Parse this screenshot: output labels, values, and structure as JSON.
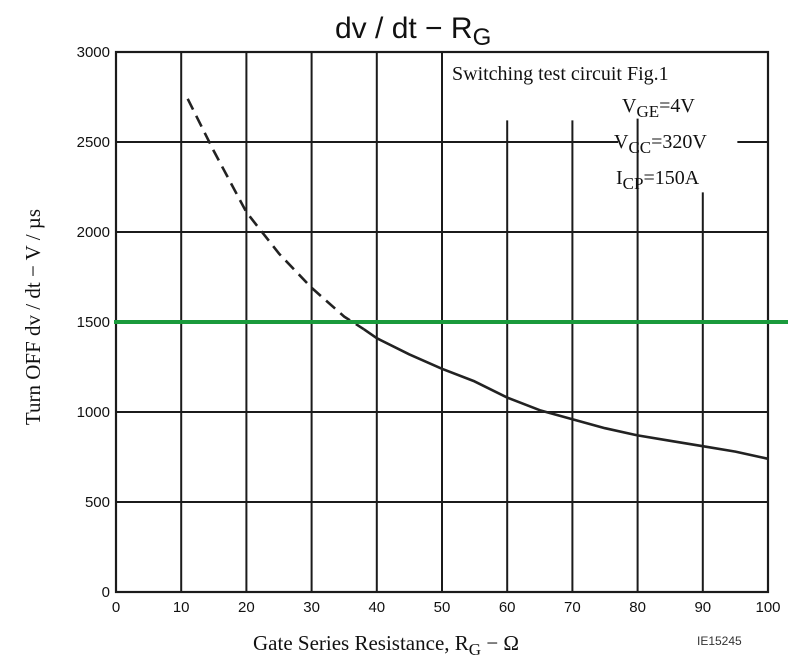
{
  "chart_data": {
    "type": "line",
    "title": "dv / dt  −  R",
    "title_sub": "G",
    "xlabel": "Gate Series Resistance, R",
    "xlabel_sub": "G",
    "xlabel_suffix": "  −  Ω",
    "ylabel": "Turn OFF dv / dt  −  V / µs",
    "xlim": [
      0,
      100
    ],
    "ylim": [
      0,
      3000
    ],
    "xticks": [
      0,
      10,
      20,
      30,
      40,
      50,
      60,
      70,
      80,
      90,
      100
    ],
    "yticks": [
      0,
      500,
      1000,
      1500,
      2000,
      2500,
      3000
    ],
    "xtick_labels": [
      "0",
      "10",
      "20",
      "30",
      "40",
      "50",
      "60",
      "70",
      "80",
      "90",
      "100"
    ],
    "ytick_labels": [
      "0",
      "500",
      "1000",
      "1500",
      "2000",
      "2500",
      "3000"
    ],
    "grid": true,
    "conditions": {
      "circuit": "Switching test circuit Fig.1",
      "vge_main": "V",
      "vge_sub": "GE",
      "vge_val": "=4V",
      "vcc_main": "V",
      "vcc_sub": "CC",
      "vcc_val": "=320V",
      "icp_main": "I",
      "icp_sub": "CP",
      "icp_val": "=150A"
    },
    "series": [
      {
        "style": "dashed",
        "color": "#222222",
        "x": [
          11,
          15,
          20,
          25,
          30,
          35,
          38
        ],
        "y": [
          2740,
          2450,
          2110,
          1880,
          1690,
          1530,
          1460
        ]
      },
      {
        "style": "solid",
        "color": "#222222",
        "x": [
          38,
          40,
          45,
          50,
          55,
          60,
          65,
          70,
          75,
          80,
          85,
          90,
          95,
          100
        ],
        "y": [
          1460,
          1410,
          1320,
          1240,
          1170,
          1080,
          1010,
          960,
          910,
          870,
          840,
          810,
          780,
          740
        ]
      }
    ],
    "reference_line": {
      "y": 1500,
      "color": "#1a9a3c"
    },
    "footnote": "IE15245"
  }
}
